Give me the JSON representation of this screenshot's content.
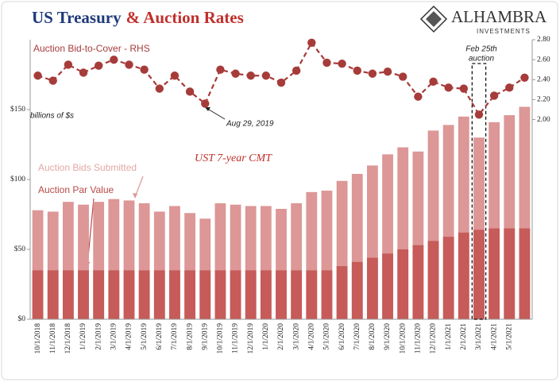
{
  "chart_data": {
    "type": "bar_line",
    "title": "US Treasury",
    "title_highlight": "& Auction Rates",
    "logo": {
      "name": "ALHAMBRA",
      "sub": "INVESTMENTS"
    },
    "categories": [
      "10/1/2018",
      "11/1/2018",
      "12/1/2018",
      "1/1/2019",
      "2/1/2019",
      "3/1/2019",
      "4/1/2019",
      "5/1/2019",
      "6/1/2019",
      "7/1/2019",
      "8/1/2019",
      "9/1/2019",
      "10/1/2019",
      "11/1/2019",
      "12/1/2019",
      "1/1/2020",
      "2/1/2020",
      "3/1/2020",
      "4/1/2020",
      "5/1/2020",
      "6/1/2020",
      "7/1/2020",
      "8/1/2020",
      "9/1/2020",
      "10/1/2020",
      "11/1/2020",
      "12/1/2020",
      "1/1/2021",
      "2/1/2021",
      "3/1/2021",
      "4/1/2021",
      "5/1/2021",
      null
    ],
    "series": [
      {
        "name": "Auction Bids Submitted",
        "color": "#dc9796",
        "axis": "y",
        "values": [
          78,
          77,
          84,
          82,
          84,
          86,
          85,
          83,
          77,
          81,
          76,
          72,
          83,
          82,
          81,
          81,
          79,
          83,
          91,
          92,
          99,
          104,
          110,
          118,
          123,
          120,
          135,
          139,
          145,
          130,
          141,
          146,
          152
        ]
      },
      {
        "name": "Auction Par Value",
        "color": "#c65b59",
        "axis": "y",
        "values": [
          35,
          35,
          35,
          35,
          35,
          35,
          35,
          35,
          35,
          35,
          35,
          35,
          35,
          35,
          35,
          35,
          35,
          35,
          35,
          35,
          38,
          41,
          44,
          47,
          50,
          53,
          56,
          59,
          62,
          64,
          65,
          65,
          65
        ]
      },
      {
        "name": "Auction Bid-to-Cover - RHS",
        "color": "#a63c3a",
        "axis": "y2",
        "values": [
          2.44,
          2.39,
          2.55,
          2.47,
          2.54,
          2.6,
          2.55,
          2.5,
          2.31,
          2.44,
          2.28,
          2.16,
          2.5,
          2.46,
          2.44,
          2.44,
          2.37,
          2.49,
          2.77,
          2.57,
          2.56,
          2.49,
          2.46,
          2.48,
          2.43,
          2.23,
          2.38,
          2.32,
          2.31,
          2.05,
          2.24,
          2.32,
          2.42
        ]
      }
    ],
    "ylim": [
      0,
      200
    ],
    "yticks": [
      {
        "value": 0,
        "label": "$0"
      },
      {
        "value": 50,
        "label": "$50"
      },
      {
        "value": 100,
        "label": "$100"
      },
      {
        "value": 150,
        "label": "$150"
      }
    ],
    "y2lim": [
      0,
      2.8
    ],
    "y2ticks": [
      {
        "value": 2,
        "label": "2.00"
      },
      {
        "value": 2.2,
        "label": "2.20"
      },
      {
        "value": 2.4,
        "label": "2.40"
      },
      {
        "value": 2.6,
        "label": "2.60"
      },
      {
        "value": 2.8,
        "label": "2.80"
      }
    ],
    "annotations": {
      "units": "billions of $s",
      "date": "Aug 29, 2019",
      "cmt": "UST 7-year CMT",
      "feb": "Feb 25th",
      "feb2": "auction"
    }
  }
}
